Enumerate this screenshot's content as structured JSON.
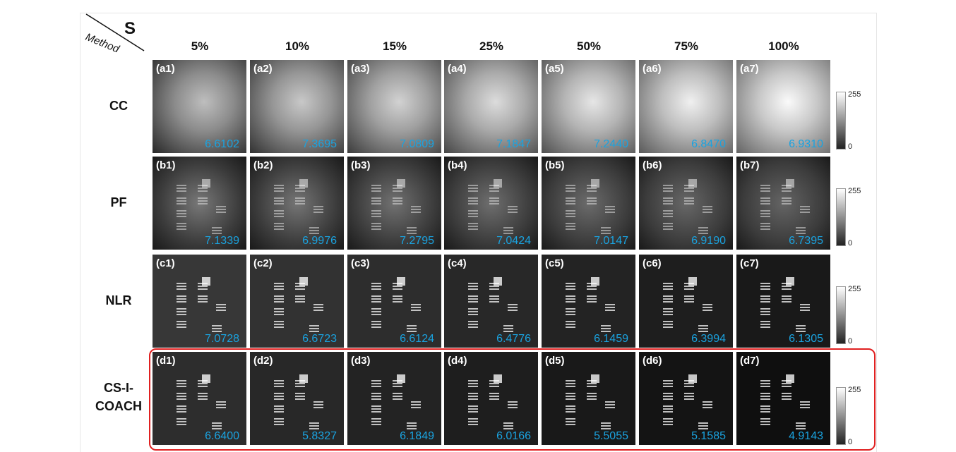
{
  "header": {
    "corner_top": "S",
    "corner_bottom": "Method",
    "columns": [
      "5%",
      "10%",
      "15%",
      "25%",
      "50%",
      "75%",
      "100%"
    ]
  },
  "rows": [
    {
      "label": "CC",
      "cells": [
        {
          "tag": "(a1)",
          "value": "6.6102"
        },
        {
          "tag": "(a2)",
          "value": "7.3695"
        },
        {
          "tag": "(a3)",
          "value": "7.0809"
        },
        {
          "tag": "(a4)",
          "value": "7.1847"
        },
        {
          "tag": "(a5)",
          "value": "7.2440"
        },
        {
          "tag": "(a6)",
          "value": "6.8470"
        },
        {
          "tag": "(a7)",
          "value": "6.9310"
        }
      ]
    },
    {
      "label": "PF",
      "cells": [
        {
          "tag": "(b1)",
          "value": "7.1339"
        },
        {
          "tag": "(b2)",
          "value": "6.9976"
        },
        {
          "tag": "(b3)",
          "value": "7.2795"
        },
        {
          "tag": "(b4)",
          "value": "7.0424"
        },
        {
          "tag": "(b5)",
          "value": "7.0147"
        },
        {
          "tag": "(b6)",
          "value": "6.9190"
        },
        {
          "tag": "(b7)",
          "value": "6.7395"
        }
      ]
    },
    {
      "label": "NLR",
      "cells": [
        {
          "tag": "(c1)",
          "value": "7.0728"
        },
        {
          "tag": "(c2)",
          "value": "6.6723"
        },
        {
          "tag": "(c3)",
          "value": "6.6124"
        },
        {
          "tag": "(c4)",
          "value": "6.4776"
        },
        {
          "tag": "(c5)",
          "value": "6.1459"
        },
        {
          "tag": "(c6)",
          "value": "6.3994"
        },
        {
          "tag": "(c7)",
          "value": "6.1305"
        }
      ]
    },
    {
      "label": "CS-I-COACH",
      "cells": [
        {
          "tag": "(d1)",
          "value": "6.6400"
        },
        {
          "tag": "(d2)",
          "value": "5.8327"
        },
        {
          "tag": "(d3)",
          "value": "6.1849"
        },
        {
          "tag": "(d4)",
          "value": "6.0166"
        },
        {
          "tag": "(d5)",
          "value": "5.5055"
        },
        {
          "tag": "(d6)",
          "value": "5.1585"
        },
        {
          "tag": "(d7)",
          "value": "4.9143"
        }
      ]
    }
  ],
  "colorbar": {
    "max": "255",
    "min": "0"
  }
}
